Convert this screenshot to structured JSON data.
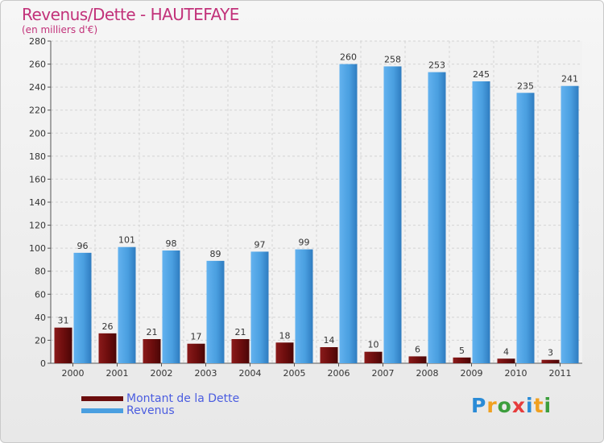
{
  "header": {
    "title": "Revenus/Dette - HAUTEFAYE",
    "subtitle": "(en milliers d'€)"
  },
  "logo": {
    "text": "Proxiti"
  },
  "colors": {
    "dette": "#6b0d0d",
    "revenus": "#4a9fe0",
    "title": "#c2327a",
    "legend_text": "#4b5de0"
  },
  "chart_data": {
    "type": "bar",
    "title": "Revenus/Dette - HAUTEFAYE",
    "ylabel": "(en milliers d'€)",
    "xlabel": "",
    "categories": [
      "2000",
      "2001",
      "2002",
      "2003",
      "2004",
      "2005",
      "2006",
      "2007",
      "2008",
      "2009",
      "2010",
      "2011"
    ],
    "series": [
      {
        "name": "Montant de la Dette",
        "values": [
          31,
          26,
          21,
          17,
          21,
          18,
          14,
          10,
          6,
          5,
          4,
          3
        ]
      },
      {
        "name": "Revenus",
        "values": [
          96,
          101,
          98,
          89,
          97,
          99,
          260,
          258,
          253,
          245,
          235,
          241
        ]
      }
    ],
    "ylim": [
      0,
      280
    ],
    "yticks": [
      0,
      20,
      40,
      60,
      80,
      100,
      120,
      140,
      160,
      180,
      200,
      220,
      240,
      260,
      280
    ],
    "grid": true,
    "legend": "bottom-left"
  }
}
